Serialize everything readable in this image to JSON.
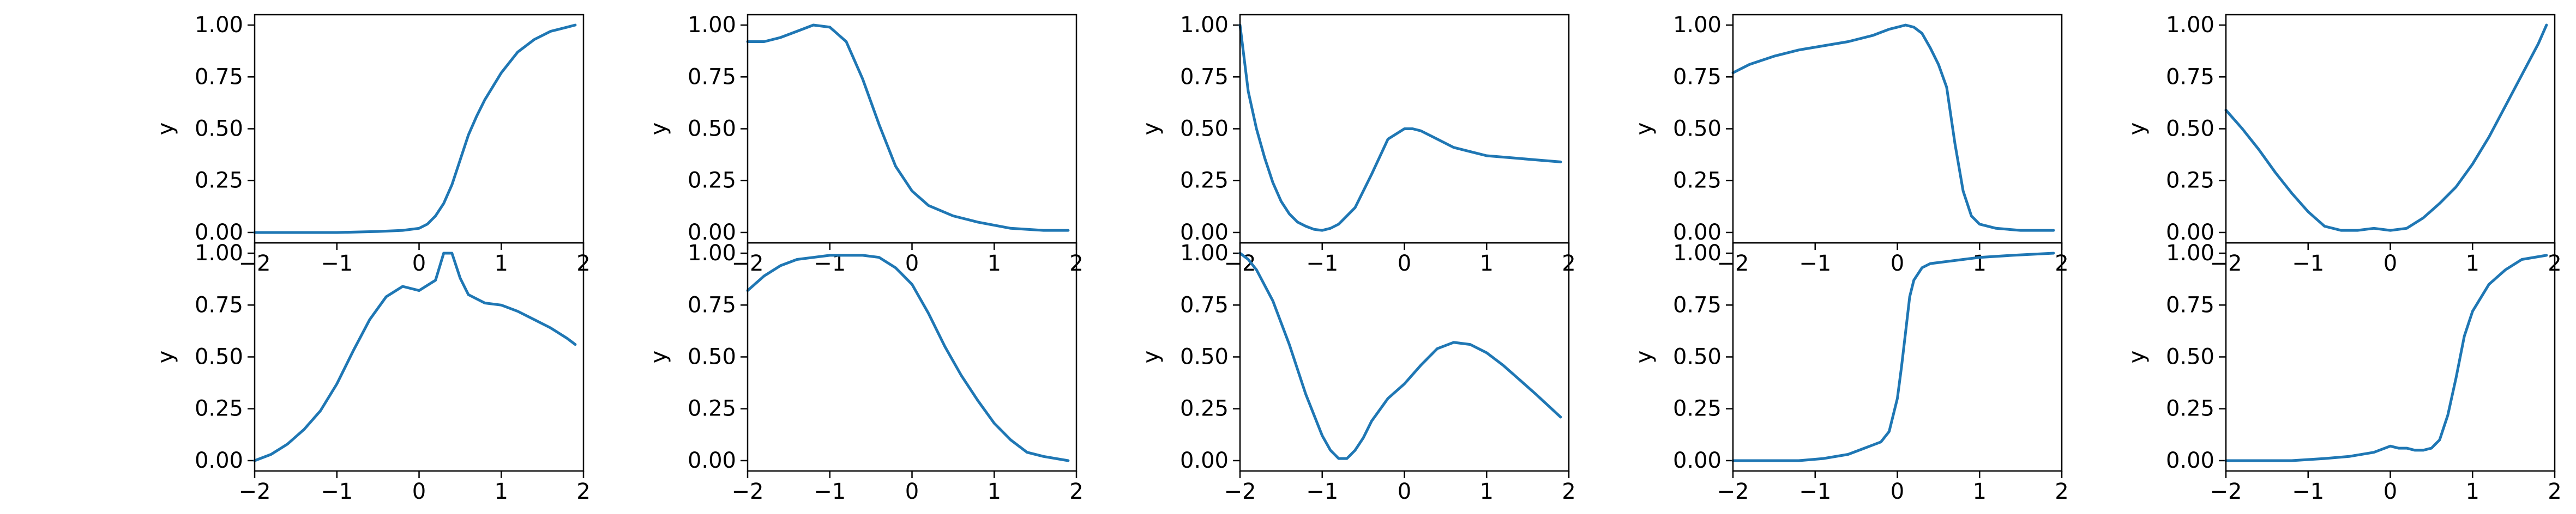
{
  "chart_data": {
    "type": "line",
    "line_color": "#1f77b4",
    "grid": false,
    "layout": "2 rows x 5 columns of subplots sharing an x range",
    "x_ticks": [
      -2,
      -1,
      0,
      1,
      2
    ],
    "x_tick_labels": [
      "−2",
      "−1",
      "0",
      "1",
      "2"
    ],
    "y_ticks": [
      0.0,
      0.25,
      0.5,
      0.75,
      1.0
    ],
    "y_tick_labels": [
      "0.00",
      "0.25",
      "0.50",
      "0.75",
      "1.00"
    ],
    "xlim": [
      -2,
      2
    ],
    "ylim": [
      -0.05,
      1.05
    ],
    "panels": [
      {
        "row": 0,
        "col": 0,
        "ylabel": "y",
        "x": [
          -2,
          -1.5,
          -1,
          -0.5,
          -0.2,
          0,
          0.1,
          0.2,
          0.3,
          0.4,
          0.5,
          0.6,
          0.7,
          0.8,
          1,
          1.2,
          1.4,
          1.6,
          1.8,
          1.9
        ],
        "y": [
          0,
          0,
          0,
          0.005,
          0.01,
          0.02,
          0.04,
          0.08,
          0.14,
          0.23,
          0.35,
          0.47,
          0.56,
          0.64,
          0.77,
          0.87,
          0.93,
          0.97,
          0.99,
          1.0
        ]
      },
      {
        "row": 0,
        "col": 1,
        "ylabel": "y",
        "x": [
          -2,
          -1.8,
          -1.6,
          -1.4,
          -1.2,
          -1,
          -0.8,
          -0.6,
          -0.4,
          -0.2,
          0,
          0.2,
          0.5,
          0.8,
          1.2,
          1.6,
          1.9
        ],
        "y": [
          0.92,
          0.92,
          0.94,
          0.97,
          1.0,
          0.99,
          0.92,
          0.74,
          0.52,
          0.32,
          0.2,
          0.13,
          0.08,
          0.05,
          0.02,
          0.01,
          0.01
        ]
      },
      {
        "row": 0,
        "col": 2,
        "ylabel": "y",
        "x": [
          -2,
          -1.9,
          -1.8,
          -1.7,
          -1.6,
          -1.5,
          -1.4,
          -1.3,
          -1.2,
          -1.1,
          -1,
          -0.9,
          -0.8,
          -0.6,
          -0.4,
          -0.2,
          0,
          0.1,
          0.2,
          0.4,
          0.6,
          0.8,
          1,
          1.3,
          1.6,
          1.9
        ],
        "y": [
          1.0,
          0.68,
          0.5,
          0.36,
          0.24,
          0.15,
          0.09,
          0.05,
          0.03,
          0.015,
          0.01,
          0.02,
          0.04,
          0.12,
          0.28,
          0.45,
          0.5,
          0.5,
          0.49,
          0.45,
          0.41,
          0.39,
          0.37,
          0.36,
          0.35,
          0.34
        ]
      },
      {
        "row": 0,
        "col": 3,
        "ylabel": "y",
        "x": [
          -2,
          -1.8,
          -1.5,
          -1.2,
          -0.9,
          -0.6,
          -0.3,
          -0.1,
          0,
          0.1,
          0.2,
          0.3,
          0.4,
          0.5,
          0.6,
          0.7,
          0.8,
          0.9,
          1,
          1.2,
          1.5,
          1.9
        ],
        "y": [
          0.77,
          0.81,
          0.85,
          0.88,
          0.9,
          0.92,
          0.95,
          0.98,
          0.99,
          1.0,
          0.99,
          0.96,
          0.89,
          0.81,
          0.7,
          0.43,
          0.2,
          0.08,
          0.04,
          0.02,
          0.01,
          0.01
        ]
      },
      {
        "row": 0,
        "col": 4,
        "ylabel": "y",
        "x": [
          -2,
          -1.8,
          -1.6,
          -1.4,
          -1.2,
          -1,
          -0.8,
          -0.6,
          -0.4,
          -0.2,
          0,
          0.2,
          0.4,
          0.6,
          0.8,
          1,
          1.2,
          1.4,
          1.6,
          1.8,
          1.9
        ],
        "y": [
          0.59,
          0.5,
          0.4,
          0.29,
          0.19,
          0.1,
          0.03,
          0.01,
          0.01,
          0.02,
          0.01,
          0.02,
          0.07,
          0.14,
          0.22,
          0.33,
          0.46,
          0.61,
          0.76,
          0.91,
          1.0
        ]
      },
      {
        "row": 1,
        "col": 0,
        "ylabel": "y",
        "x": [
          -2,
          -1.8,
          -1.6,
          -1.4,
          -1.2,
          -1,
          -0.8,
          -0.6,
          -0.4,
          -0.2,
          0,
          0.2,
          0.3,
          0.4,
          0.5,
          0.6,
          0.8,
          1,
          1.2,
          1.4,
          1.6,
          1.8,
          1.9
        ],
        "y": [
          0,
          0.03,
          0.08,
          0.15,
          0.24,
          0.37,
          0.53,
          0.68,
          0.79,
          0.84,
          0.82,
          0.87,
          1.0,
          1.0,
          0.88,
          0.8,
          0.76,
          0.75,
          0.72,
          0.68,
          0.64,
          0.59,
          0.56
        ]
      },
      {
        "row": 1,
        "col": 1,
        "ylabel": "y",
        "x": [
          -2,
          -1.8,
          -1.6,
          -1.4,
          -1.2,
          -1,
          -0.8,
          -0.6,
          -0.4,
          -0.2,
          0,
          0.2,
          0.4,
          0.6,
          0.8,
          1,
          1.2,
          1.4,
          1.6,
          1.9
        ],
        "y": [
          0.82,
          0.89,
          0.94,
          0.97,
          0.98,
          0.99,
          0.99,
          0.99,
          0.98,
          0.93,
          0.85,
          0.71,
          0.55,
          0.41,
          0.29,
          0.18,
          0.1,
          0.04,
          0.02,
          0.0
        ]
      },
      {
        "row": 1,
        "col": 2,
        "ylabel": "y",
        "x": [
          -2,
          -1.9,
          -1.8,
          -1.6,
          -1.4,
          -1.2,
          -1,
          -0.9,
          -0.8,
          -0.7,
          -0.6,
          -0.5,
          -0.4,
          -0.2,
          0,
          0.2,
          0.4,
          0.6,
          0.8,
          1,
          1.2,
          1.4,
          1.6,
          1.9
        ],
        "y": [
          1.0,
          0.97,
          0.92,
          0.77,
          0.56,
          0.32,
          0.12,
          0.05,
          0.01,
          0.01,
          0.05,
          0.11,
          0.19,
          0.3,
          0.37,
          0.46,
          0.54,
          0.57,
          0.56,
          0.52,
          0.46,
          0.39,
          0.32,
          0.21
        ]
      },
      {
        "row": 1,
        "col": 3,
        "ylabel": "y",
        "x": [
          -2,
          -1.6,
          -1.2,
          -0.9,
          -0.6,
          -0.4,
          -0.2,
          -0.1,
          0,
          0.05,
          0.1,
          0.15,
          0.2,
          0.3,
          0.4,
          0.6,
          0.8,
          1,
          1.4,
          1.9
        ],
        "y": [
          0,
          0,
          0,
          0.01,
          0.03,
          0.06,
          0.09,
          0.14,
          0.3,
          0.45,
          0.62,
          0.79,
          0.87,
          0.93,
          0.95,
          0.96,
          0.97,
          0.98,
          0.99,
          1.0
        ]
      },
      {
        "row": 1,
        "col": 4,
        "ylabel": "y",
        "x": [
          -2,
          -1.6,
          -1.2,
          -0.8,
          -0.5,
          -0.2,
          0,
          0.1,
          0.2,
          0.3,
          0.4,
          0.5,
          0.6,
          0.7,
          0.8,
          0.9,
          1,
          1.2,
          1.4,
          1.6,
          1.9
        ],
        "y": [
          0,
          0,
          0,
          0.01,
          0.02,
          0.04,
          0.07,
          0.06,
          0.06,
          0.05,
          0.05,
          0.06,
          0.1,
          0.22,
          0.4,
          0.6,
          0.72,
          0.85,
          0.92,
          0.97,
          0.99
        ]
      }
    ]
  }
}
